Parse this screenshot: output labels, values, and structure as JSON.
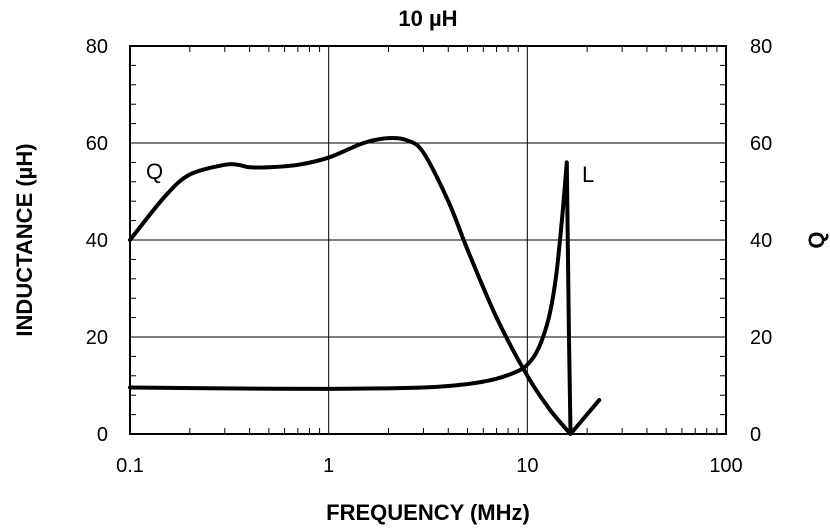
{
  "chart_data": {
    "type": "line",
    "title": "10 µH",
    "xlabel": "FREQUENCY (MHz)",
    "ylabel": "INDUCTANCE (µH)",
    "y2label": "Q",
    "x_scale": "log",
    "xlim": [
      0.1,
      100
    ],
    "ylim": [
      0,
      80
    ],
    "y2lim": [
      0,
      80
    ],
    "grid": true,
    "x_ticks": [
      "0.1",
      "1",
      "10",
      "100"
    ],
    "y_ticks": [
      "0",
      "20",
      "40",
      "60",
      "80"
    ],
    "y2_ticks": [
      "0",
      "20",
      "40",
      "60",
      "80"
    ],
    "series": [
      {
        "name": "L",
        "axis": "left",
        "x": [
          0.1,
          0.3,
          1,
          3,
          5,
          7,
          9,
          10,
          11,
          12,
          13,
          14,
          15,
          15.8,
          16.2,
          16.5,
          23
        ],
        "y": [
          9.6,
          9.4,
          9.3,
          9.6,
          10.3,
          11.4,
          13.0,
          14.3,
          16.5,
          20,
          25,
          33,
          45,
          56,
          20,
          0,
          7
        ]
      },
      {
        "name": "Q",
        "axis": "right",
        "x": [
          0.1,
          0.15,
          0.2,
          0.3,
          0.35,
          0.4,
          0.5,
          0.7,
          1,
          1.5,
          2,
          2.5,
          3,
          4,
          5,
          7,
          10,
          13,
          16.5
        ],
        "y": [
          40,
          49,
          53.5,
          55.5,
          55.5,
          55,
          55,
          55.5,
          57,
          60,
          61,
          60.5,
          58,
          48,
          38,
          24,
          12,
          5,
          0
        ]
      }
    ],
    "series_labels": {
      "L": "L",
      "Q": "Q"
    }
  }
}
